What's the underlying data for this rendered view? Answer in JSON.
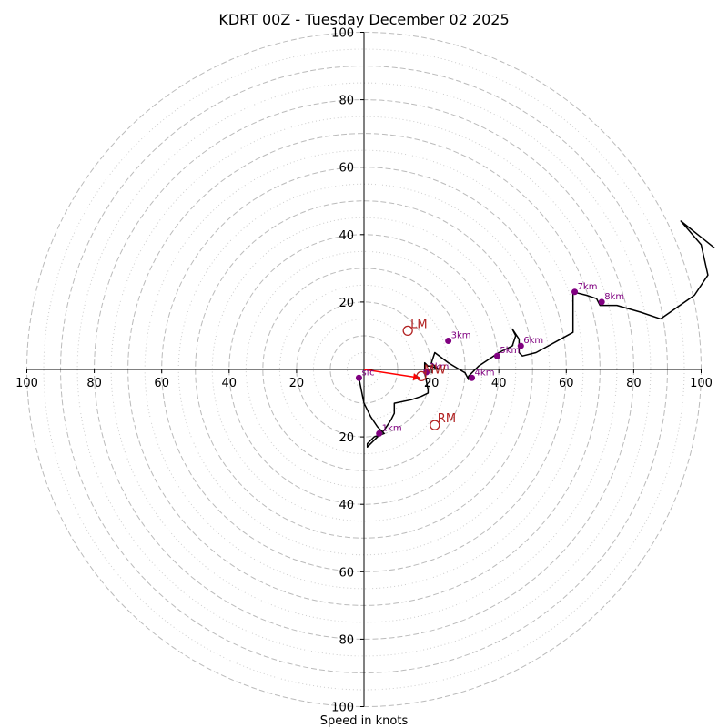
{
  "chart_data": {
    "type": "hodograph",
    "title": "KDRT 00Z - Tuesday December 02 2025",
    "xlabel": "Speed in knots",
    "xlim": [
      -100,
      100
    ],
    "ylim": [
      -100,
      100
    ],
    "colors": {
      "profile": "#000000",
      "height_marker": "#800080",
      "motion": "#b22222",
      "arrow": "#ff0000",
      "ring_major": "#bbbbbb",
      "ring_minor": "#cccccc"
    },
    "rings": {
      "major": [
        10,
        20,
        30,
        40,
        50,
        60,
        70,
        80,
        90,
        100
      ],
      "minor": [
        5,
        15,
        25,
        35,
        45,
        55,
        65,
        75,
        85,
        95
      ]
    },
    "x_ticks": [
      {
        "value": -100,
        "label": "100"
      },
      {
        "value": -80,
        "label": "80"
      },
      {
        "value": -60,
        "label": "60"
      },
      {
        "value": -40,
        "label": "40"
      },
      {
        "value": -20,
        "label": "20"
      },
      {
        "value": 20,
        "label": "20"
      },
      {
        "value": 40,
        "label": "40"
      },
      {
        "value": 60,
        "label": "60"
      },
      {
        "value": 80,
        "label": "80"
      },
      {
        "value": 100,
        "label": "100"
      }
    ],
    "y_ticks": [
      {
        "value": 100,
        "label": "100"
      },
      {
        "value": 80,
        "label": "80"
      },
      {
        "value": 60,
        "label": "60"
      },
      {
        "value": 40,
        "label": "40"
      },
      {
        "value": 20,
        "label": "20"
      },
      {
        "value": -20,
        "label": "20"
      },
      {
        "value": -40,
        "label": "40"
      },
      {
        "value": -60,
        "label": "60"
      },
      {
        "value": -80,
        "label": "80"
      },
      {
        "value": -100,
        "label": "100"
      }
    ],
    "profile": [
      [
        -1.5,
        -2.5
      ],
      [
        0,
        -10
      ],
      [
        2,
        -14
      ],
      [
        4,
        -17
      ],
      [
        6,
        -19
      ],
      [
        3,
        -20
      ],
      [
        1,
        -22
      ],
      [
        1,
        -23
      ],
      [
        3,
        -21
      ],
      [
        6,
        -18
      ],
      [
        8,
        -15
      ],
      [
        9,
        -13
      ],
      [
        9,
        -10
      ],
      [
        14,
        -9
      ],
      [
        17,
        -8
      ],
      [
        19,
        -7
      ],
      [
        19,
        -6
      ],
      [
        18,
        -1
      ],
      [
        18,
        2
      ],
      [
        19,
        1
      ],
      [
        20,
        1
      ],
      [
        22,
        0
      ],
      [
        20,
        2
      ],
      [
        21,
        5
      ],
      [
        25,
        2
      ],
      [
        30,
        -1
      ],
      [
        31,
        -3
      ],
      [
        31,
        -2
      ],
      [
        34,
        1
      ],
      [
        37,
        3
      ],
      [
        40,
        5
      ],
      [
        44,
        7
      ],
      [
        45,
        10
      ],
      [
        44,
        12
      ],
      [
        46,
        9
      ],
      [
        46,
        5
      ],
      [
        47,
        4
      ],
      [
        51,
        5
      ],
      [
        62,
        11
      ],
      [
        62,
        23
      ],
      [
        66,
        22
      ],
      [
        69,
        21
      ],
      [
        70,
        19
      ],
      [
        75,
        19
      ],
      [
        82,
        17
      ],
      [
        88,
        15
      ],
      [
        98,
        22
      ],
      [
        102,
        28
      ],
      [
        100,
        37
      ],
      [
        94,
        44
      ],
      [
        104,
        36
      ]
    ],
    "heights": [
      {
        "label": "sfc",
        "u": -1.5,
        "v": -2.5
      },
      {
        "label": "1km",
        "u": 4.5,
        "v": -19
      },
      {
        "label": "2km",
        "u": 18.5,
        "v": -0.8
      },
      {
        "label": "3km",
        "u": 25,
        "v": 8.5
      },
      {
        "label": "4km",
        "u": 32,
        "v": -2.5
      },
      {
        "label": "5km",
        "u": 39.5,
        "v": 4
      },
      {
        "label": "6km",
        "u": 46.5,
        "v": 7
      },
      {
        "label": "7km",
        "u": 62.5,
        "v": 23
      },
      {
        "label": "8km",
        "u": 70.5,
        "v": 20
      }
    ],
    "storm_motions": [
      {
        "label": "LM",
        "u": 13,
        "v": 11.5
      },
      {
        "label": "RM",
        "u": 21,
        "v": -16.5
      },
      {
        "label": "MW",
        "u": 17,
        "v": -2
      }
    ],
    "shear_arrow": {
      "from": [
        0,
        0
      ],
      "to": [
        16.5,
        -2.5
      ]
    }
  }
}
